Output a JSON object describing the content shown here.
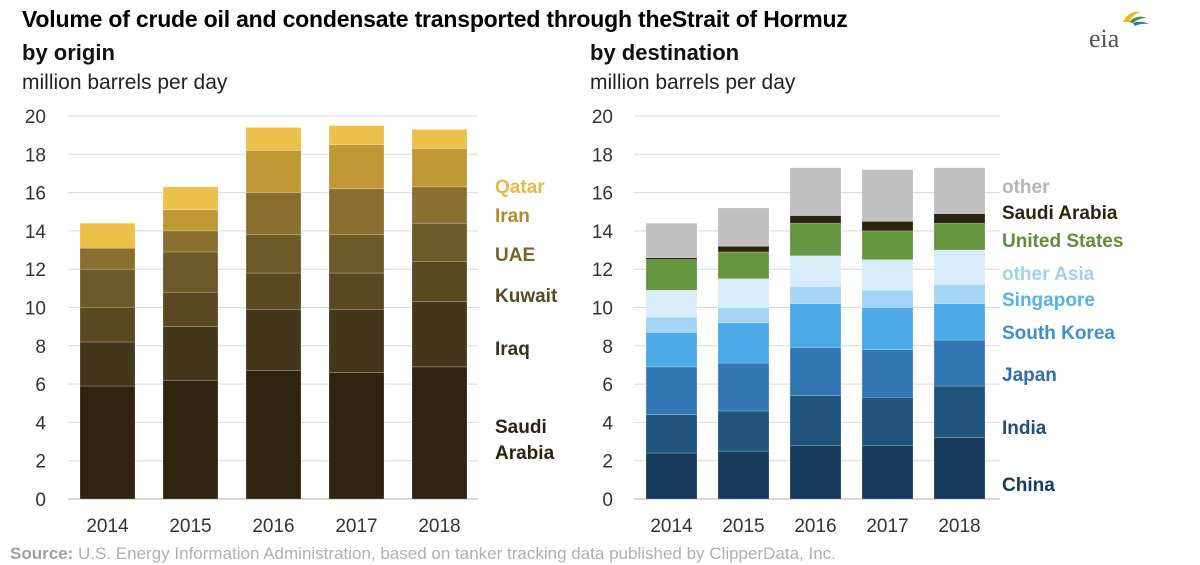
{
  "title": "Volume of crude oil and condensate transported through theStrait of Hormuz",
  "logo_text": "eia",
  "source_label": "Source:",
  "source_text": " U.S. Energy Information Administration, based on tanker tracking data published by ClipperData, Inc.",
  "chart_data": [
    {
      "type": "bar",
      "stacked": true,
      "subtitle": "by origin",
      "ylabel": "million barrels per day",
      "ylim": [
        0,
        20
      ],
      "yticks": [
        0,
        2,
        4,
        6,
        8,
        10,
        12,
        14,
        16,
        18,
        20
      ],
      "grid": true,
      "legend_placement": "right",
      "categories": [
        "2014",
        "2015",
        "2016",
        "2017",
        "2018"
      ],
      "series": [
        {
          "name": "Saudi Arabia",
          "color": "#2e2410",
          "values": [
            5.9,
            6.2,
            6.7,
            6.6,
            6.9
          ]
        },
        {
          "name": "Iraq",
          "color": "#44361a",
          "values": [
            2.3,
            2.8,
            3.2,
            3.3,
            3.4
          ]
        },
        {
          "name": "",
          "color": "#5a4820",
          "values": [
            1.8,
            1.8,
            1.9,
            1.9,
            2.1
          ]
        },
        {
          "name": "Kuwait",
          "color": "#6e5a28",
          "values": [
            2.0,
            2.1,
            2.0,
            2.0,
            2.0
          ]
        },
        {
          "name": "UAE",
          "color": "#8a7030",
          "values": [
            1.1,
            1.1,
            2.2,
            2.4,
            1.9
          ]
        },
        {
          "name": "Iran",
          "color": "#bf9835",
          "values": [
            0.0,
            1.1,
            2.2,
            2.3,
            2.0
          ]
        },
        {
          "name": "Qatar",
          "color": "#ecc14a",
          "values": [
            1.3,
            1.2,
            1.2,
            1.0,
            1.0
          ]
        }
      ],
      "legend_labels": [
        {
          "text": "Qatar",
          "color": "#e8b84a"
        },
        {
          "text": "Iran",
          "color": "#b08b2e"
        },
        {
          "text": "UAE",
          "color": "#7a6428"
        },
        {
          "text": "Kuwait",
          "color": "#5a4a20"
        },
        {
          "text": "Iraq",
          "color": "#3f3218"
        },
        {
          "text": "Saudi\nArabia",
          "color": "#2b2210"
        }
      ]
    },
    {
      "type": "bar",
      "stacked": true,
      "subtitle": "by destination",
      "ylabel": "million barrels per day",
      "ylim": [
        0,
        20
      ],
      "yticks": [
        0,
        2,
        4,
        6,
        8,
        10,
        12,
        14,
        16,
        18,
        20
      ],
      "grid": true,
      "legend_placement": "right",
      "categories": [
        "2014",
        "2015",
        "2016",
        "2017",
        "2018"
      ],
      "series": [
        {
          "name": "China",
          "color": "#163a5a",
          "values": [
            2.4,
            2.5,
            2.8,
            2.8,
            3.2
          ]
        },
        {
          "name": "India",
          "color": "#22557e",
          "values": [
            2.0,
            2.1,
            2.6,
            2.5,
            2.7
          ]
        },
        {
          "name": "Japan",
          "color": "#3377b5",
          "values": [
            2.5,
            2.5,
            2.5,
            2.5,
            2.4
          ]
        },
        {
          "name": "South Korea",
          "color": "#4daae8",
          "values": [
            1.8,
            2.1,
            2.3,
            2.2,
            1.9
          ]
        },
        {
          "name": "Singapore",
          "color": "#a6d4f4",
          "values": [
            0.8,
            0.8,
            0.9,
            0.9,
            1.0
          ]
        },
        {
          "name": "other Asia",
          "color": "#d8ecfa",
          "values": [
            1.4,
            1.5,
            1.6,
            1.6,
            1.8
          ]
        },
        {
          "name": "United States",
          "color": "#66963f",
          "values": [
            1.6,
            1.4,
            1.7,
            1.5,
            1.4
          ]
        },
        {
          "name": "Saudi Arabia",
          "color": "#2b2410",
          "values": [
            0.1,
            0.3,
            0.4,
            0.5,
            0.5
          ]
        },
        {
          "name": "other",
          "color": "#c0c0c0",
          "values": [
            1.8,
            2.0,
            2.5,
            2.7,
            2.4
          ]
        }
      ],
      "legend_labels": [
        {
          "text": "other",
          "color": "#b5b5b5"
        },
        {
          "text": "Saudi Arabia",
          "color": "#2b2410"
        },
        {
          "text": "United States",
          "color": "#5e8e38"
        },
        {
          "text": "other Asia",
          "color": "#a3d0ef"
        },
        {
          "text": "Singapore",
          "color": "#56b0ea"
        },
        {
          "text": "South Korea",
          "color": "#3f8fd0"
        },
        {
          "text": "Japan",
          "color": "#2f6ea8"
        },
        {
          "text": "India",
          "color": "#22507a"
        },
        {
          "text": "China",
          "color": "#163a5a"
        }
      ]
    }
  ]
}
